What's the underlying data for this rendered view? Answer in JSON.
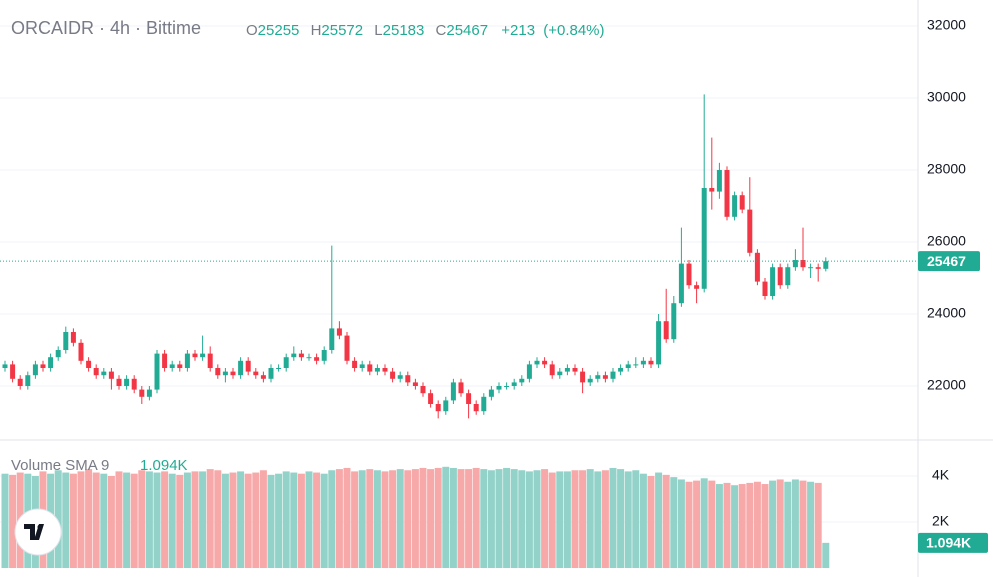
{
  "chart_data": {
    "type": "candlestick",
    "title": "ORCAIDR · 4h · Bittime",
    "ohlc_letters": [
      "O",
      "H",
      "L",
      "C"
    ],
    "change": "+213",
    "change_pct": "(+0.84%)",
    "up_color": "#22ab94",
    "down_color": "#f23645",
    "volume_up_color": "#92d2c8",
    "volume_down_color": "#f7a8a8",
    "open": [
      22500,
      22600,
      22200,
      22000,
      22300,
      22600,
      22500,
      22800,
      23000,
      23500,
      23200,
      22700,
      22500,
      22300,
      22400,
      22200,
      22000,
      22200,
      21900,
      21700,
      21900,
      22900,
      22500,
      22600,
      22500,
      22900,
      22800,
      22900,
      22500,
      22300,
      22400,
      22300,
      22700,
      22400,
      22300,
      22200,
      22500,
      22500,
      22800,
      22900,
      22800,
      22800,
      22700,
      23000,
      23600,
      23400,
      22700,
      22500,
      22600,
      22400,
      22500,
      22400,
      22200,
      22300,
      22100,
      22000,
      21800,
      21500,
      21300,
      21600,
      22100,
      21800,
      21500,
      21300,
      21700,
      21900,
      22000,
      22000,
      22100,
      22200,
      22600,
      22700,
      22600,
      22300,
      22400,
      22500,
      22400,
      22100,
      22200,
      22300,
      22200,
      22400,
      22500,
      22600,
      22600,
      22700,
      22600,
      23800,
      23300,
      24300,
      25400,
      24800,
      24700,
      27500,
      27400,
      28000,
      26700,
      27300,
      26900,
      25700,
      24900,
      24500,
      25300,
      24800,
      25300,
      25500,
      25300,
      25300,
      25255
    ],
    "high": [
      22700,
      22700,
      22300,
      22400,
      22700,
      22700,
      22900,
      23100,
      23650,
      23600,
      23300,
      22800,
      22600,
      22500,
      22500,
      22300,
      22300,
      22300,
      22000,
      22000,
      23000,
      23000,
      22700,
      22700,
      23000,
      23000,
      23400,
      23100,
      22600,
      22500,
      22500,
      22800,
      22800,
      22500,
      22400,
      22600,
      22600,
      22900,
      23100,
      23000,
      22900,
      22900,
      23100,
      25900,
      23800,
      23500,
      22800,
      22700,
      22700,
      22600,
      22600,
      22500,
      22400,
      22400,
      22200,
      22100,
      21900,
      21600,
      21700,
      22200,
      22200,
      21900,
      21600,
      21800,
      22000,
      22100,
      22100,
      22200,
      22300,
      22700,
      22800,
      22800,
      22700,
      22500,
      22600,
      22600,
      22500,
      22300,
      22400,
      22400,
      22500,
      22600,
      22700,
      22800,
      22800,
      22800,
      24000,
      24700,
      24500,
      26400,
      25500,
      24900,
      30100,
      28900,
      28200,
      28100,
      27400,
      27400,
      27800,
      25800,
      25000,
      25400,
      25400,
      25400,
      25800,
      26400,
      25400,
      25400,
      25572
    ],
    "low": [
      22400,
      22100,
      21900,
      21900,
      22200,
      22400,
      22400,
      22700,
      22900,
      23100,
      22600,
      22400,
      22200,
      22200,
      21900,
      21900,
      21900,
      21800,
      21500,
      21600,
      21800,
      22400,
      22400,
      22400,
      22400,
      22700,
      22700,
      22400,
      22200,
      22100,
      22200,
      22200,
      22300,
      22200,
      22100,
      22100,
      22400,
      22400,
      22700,
      22700,
      22700,
      22600,
      22600,
      22900,
      23300,
      22600,
      22400,
      22400,
      22300,
      22300,
      22300,
      22100,
      22100,
      22000,
      21900,
      21700,
      21400,
      21100,
      21200,
      21500,
      21700,
      21100,
      21200,
      21200,
      21600,
      21800,
      21900,
      21900,
      22000,
      22100,
      22500,
      22500,
      22200,
      22200,
      22300,
      22300,
      21800,
      22000,
      22100,
      22100,
      22100,
      22300,
      22400,
      22500,
      22500,
      22500,
      22500,
      23200,
      23200,
      24200,
      24700,
      24300,
      24600,
      26900,
      27200,
      26600,
      26600,
      26800,
      25600,
      24800,
      24400,
      24400,
      24700,
      24700,
      25200,
      25200,
      25000,
      24900,
      25183
    ],
    "close": [
      22600,
      22200,
      22000,
      22300,
      22600,
      22500,
      22800,
      23000,
      23500,
      23200,
      22700,
      22500,
      22300,
      22400,
      22200,
      22000,
      22200,
      21900,
      21700,
      21900,
      22900,
      22500,
      22600,
      22500,
      22900,
      22800,
      22900,
      22500,
      22300,
      22400,
      22300,
      22700,
      22400,
      22300,
      22200,
      22500,
      22500,
      22800,
      22900,
      22800,
      22800,
      22700,
      23000,
      23600,
      23400,
      22700,
      22500,
      22600,
      22400,
      22500,
      22400,
      22200,
      22300,
      22100,
      22000,
      21800,
      21500,
      21300,
      21600,
      22100,
      21800,
      21500,
      21300,
      21700,
      21900,
      22000,
      22000,
      22100,
      22200,
      22600,
      22700,
      22600,
      22300,
      22400,
      22500,
      22400,
      22100,
      22200,
      22300,
      22200,
      22400,
      22500,
      22600,
      22600,
      22700,
      22600,
      23800,
      23300,
      24300,
      25400,
      24800,
      24700,
      27500,
      27400,
      28000,
      26700,
      27300,
      26900,
      25700,
      24900,
      24500,
      25300,
      24800,
      25300,
      25500,
      25300,
      25300,
      25255,
      25467
    ],
    "volume_label": "Volume SMA 9",
    "volume": [
      4100,
      4050,
      4150,
      4100,
      4000,
      4200,
      4100,
      4250,
      4150,
      4100,
      4200,
      4300,
      4150,
      4100,
      4000,
      4200,
      4150,
      4100,
      4250,
      4200,
      4150,
      4200,
      4100,
      4050,
      4150,
      4200,
      4200,
      4300,
      4250,
      4100,
      4150,
      4200,
      4100,
      4150,
      4250,
      4050,
      4100,
      4200,
      4150,
      4100,
      4200,
      4150,
      4100,
      4250,
      4300,
      4350,
      4200,
      4250,
      4300,
      4250,
      4200,
      4250,
      4300,
      4250,
      4300,
      4350,
      4300,
      4350,
      4400,
      4350,
      4300,
      4300,
      4350,
      4300,
      4250,
      4300,
      4350,
      4300,
      4250,
      4200,
      4250,
      4300,
      4150,
      4200,
      4200,
      4250,
      4250,
      4300,
      4200,
      4250,
      4350,
      4300,
      4200,
      4250,
      4100,
      4000,
      4150,
      4050,
      3950,
      3850,
      3750,
      3800,
      3900,
      3800,
      3650,
      3700,
      3600,
      3650,
      3700,
      3750,
      3650,
      3800,
      3850,
      3750,
      3850,
      3800,
      3750,
      3700,
      1094
    ],
    "volume_last_label": "1.094K",
    "ylim": [
      20500,
      32722
    ],
    "yticks": [
      22000,
      24000,
      26000,
      28000,
      30000,
      32000
    ],
    "volume_ylim": [
      -391,
      5565
    ],
    "volume_ticks": [
      {
        "value": 4000,
        "label": "4K"
      },
      {
        "value": 2000,
        "label": "2K"
      }
    ],
    "grid": true
  }
}
